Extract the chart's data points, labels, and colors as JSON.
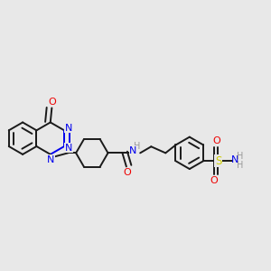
{
  "bg_color": "#e8e8e8",
  "bond_color": "#1a1a1a",
  "N_color": "#0000ee",
  "O_color": "#ee0000",
  "S_color": "#cccc00",
  "H_color": "#999999",
  "lw": 1.4,
  "dbi": 0.018,
  "figsize": [
    3.0,
    3.0
  ],
  "dpi": 100,
  "xlim": [
    0.0,
    1.0
  ],
  "ylim": [
    0.25,
    0.78
  ]
}
